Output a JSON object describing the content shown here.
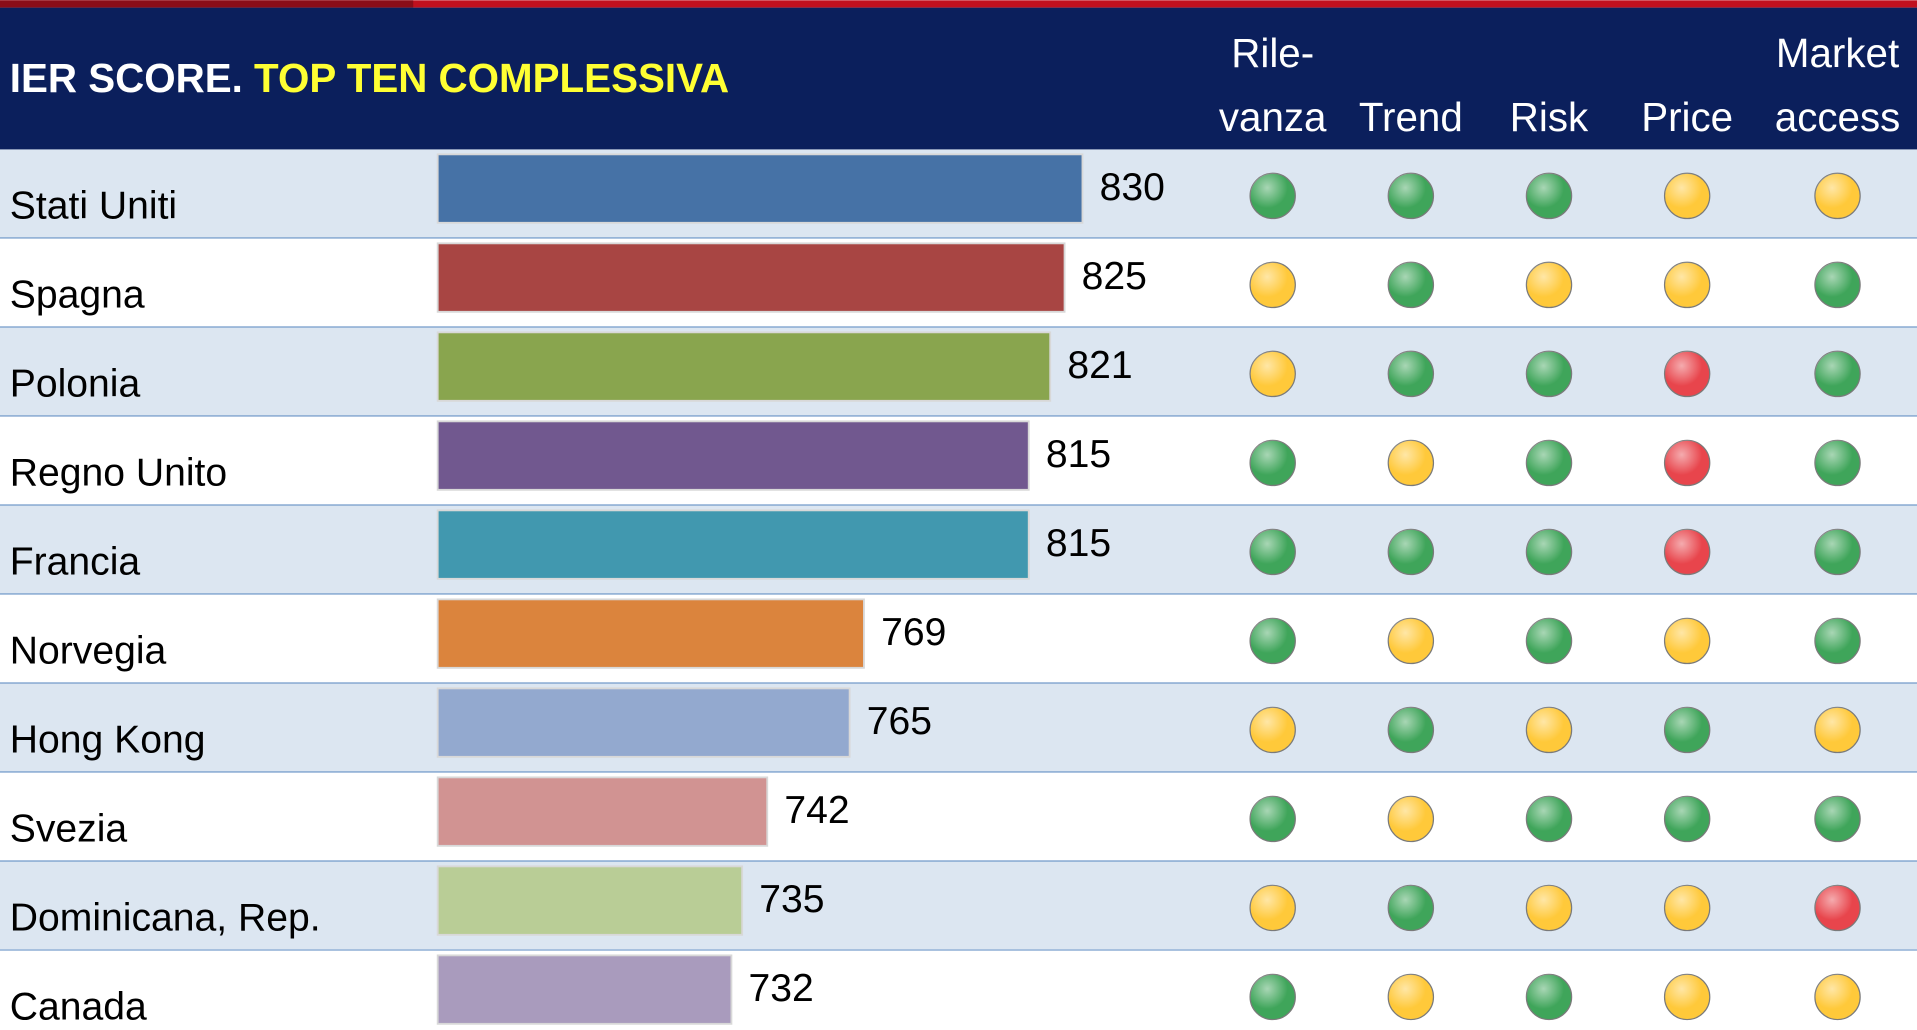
{
  "chart_data": {
    "type": "bar",
    "title": "IER SCORE.",
    "subtitle": "TOP TEN COMPLESSIVA",
    "categories": [
      "Stati Uniti",
      "Spagna",
      "Polonia",
      "Regno Unito",
      "Francia",
      "Norvegia",
      "Hong Kong",
      "Svezia",
      "Dominicana, Rep.",
      "Canada"
    ],
    "values": [
      830,
      825,
      821,
      815,
      815,
      769,
      765,
      742,
      735,
      732
    ],
    "colors": [
      "#4672a6",
      "#a84543",
      "#89a54e",
      "#71588f",
      "#4198af",
      "#db843d",
      "#93a9cf",
      "#d19392",
      "#b9cd96",
      "#a99bbd"
    ],
    "xlim": [
      650,
      850
    ],
    "indicators": {
      "columns": [
        [
          "Rile-",
          "vanza"
        ],
        [
          "Trend"
        ],
        [
          "Risk"
        ],
        [
          "Price"
        ],
        [
          "Market",
          "access"
        ]
      ],
      "status_colors": {
        "green": "#3fa55a",
        "yellow": "#ffc93a",
        "red": "#e8454c"
      },
      "rows": [
        [
          "green",
          "green",
          "green",
          "yellow",
          "yellow"
        ],
        [
          "yellow",
          "green",
          "yellow",
          "yellow",
          "green"
        ],
        [
          "yellow",
          "green",
          "green",
          "red",
          "green"
        ],
        [
          "green",
          "yellow",
          "green",
          "red",
          "green"
        ],
        [
          "green",
          "green",
          "green",
          "red",
          "green"
        ],
        [
          "green",
          "yellow",
          "green",
          "yellow",
          "green"
        ],
        [
          "yellow",
          "green",
          "yellow",
          "green",
          "yellow"
        ],
        [
          "green",
          "yellow",
          "green",
          "green",
          "green"
        ],
        [
          "yellow",
          "green",
          "yellow",
          "yellow",
          "red"
        ],
        [
          "green",
          "yellow",
          "green",
          "yellow",
          "yellow"
        ]
      ]
    }
  }
}
